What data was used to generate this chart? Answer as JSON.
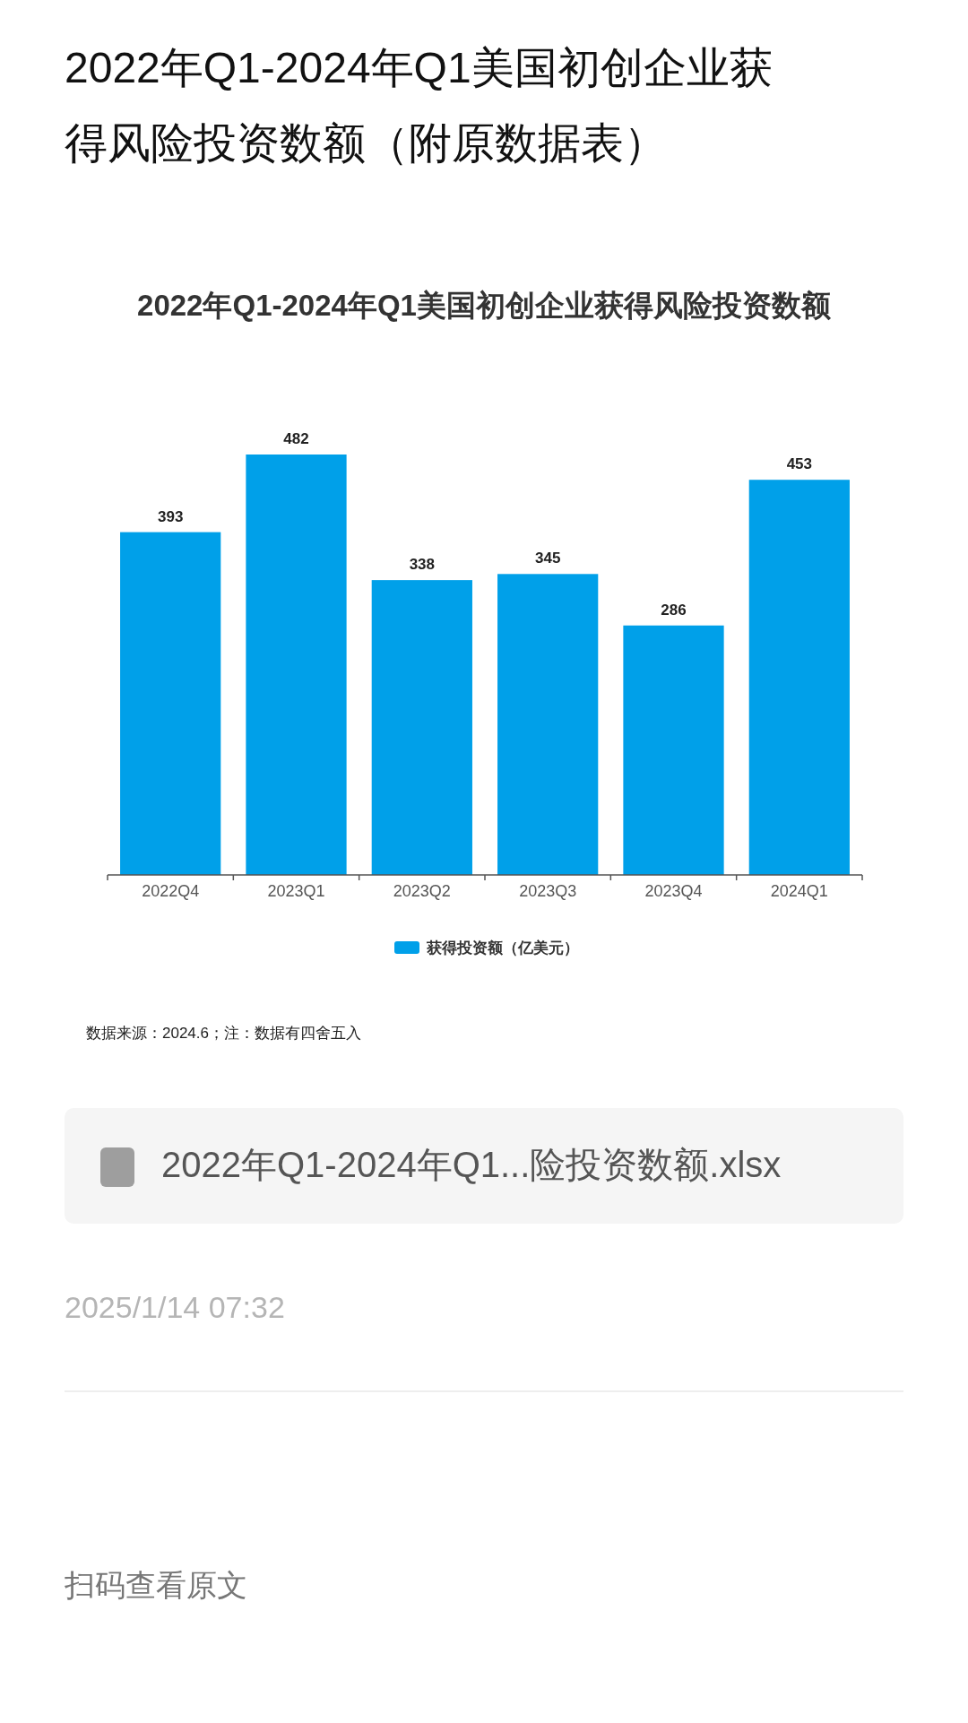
{
  "chart_data": {
    "type": "bar",
    "title": "2022年Q1-2024年Q1美国初创企业获得风险投资数额（附原数据表）",
    "subtitle": "2022年Q1-2024年Q1美国初创企业获得风险投资数额",
    "categories": [
      "2022Q4",
      "2023Q1",
      "2023Q2",
      "2023Q3",
      "2023Q4",
      "2024Q1"
    ],
    "series": [
      {
        "name": "获得投资额（亿美元）",
        "color": "#00a0e9",
        "values": [
          393,
          482,
          338,
          345,
          286,
          453
        ]
      }
    ],
    "data_labels": true,
    "legend": "bottom",
    "annotations": [
      "数据来源：2024.6；注：数据有四舍五入",
      "2022年Q1-2024年Q1...险投资数额.xlsx",
      "2025/1/14 07:32",
      "扫码查看原文"
    ]
  }
}
